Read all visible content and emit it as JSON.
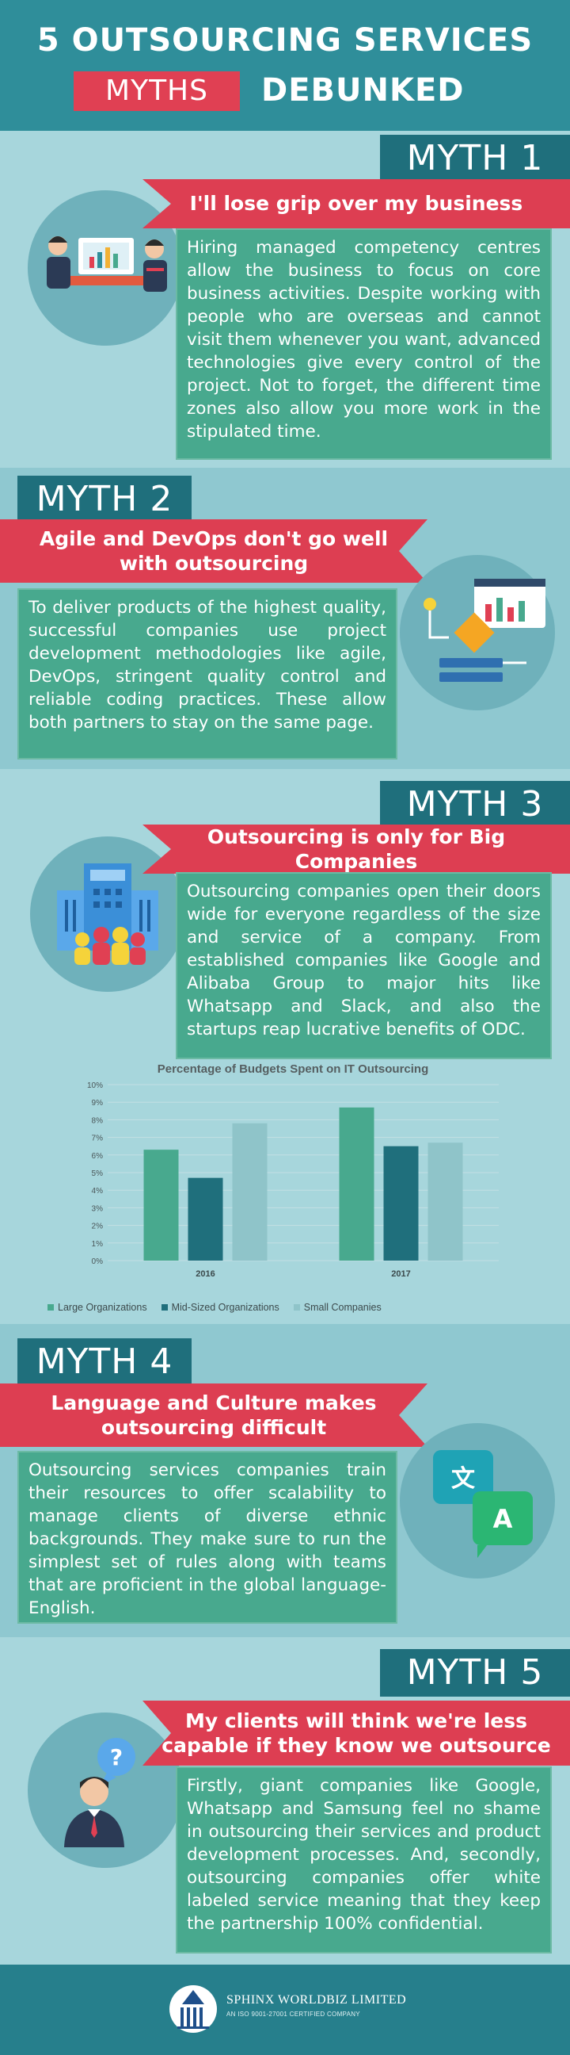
{
  "header": {
    "title_line1": "5 OUTSOURCING SERVICES",
    "myths_label": "MYTHS",
    "debunked_label": "DEBUNKED"
  },
  "myths": [
    {
      "tag": "MYTH 1",
      "headline": "I'll lose grip over my business",
      "body": "Hiring managed competency centres allow the business to focus on core business activities. Despite working with people who are overseas and cannot visit them whenever you want, advanced technologies give every control of the project. Not to forget, the different time zones also allow you more work in the stipulated time.",
      "icon": "business-meeting-icon"
    },
    {
      "tag": "MYTH 2",
      "headline": "Agile and DevOps don't go well with outsourcing",
      "body": "To deliver products of the highest quality, successful companies use project development methodologies like agile, DevOps, stringent quality control and reliable coding practices. These allow both partners to stay on the same page.",
      "icon": "workflow-dashboard-icon"
    },
    {
      "tag": "MYTH 3",
      "headline": "Outsourcing is only for Big Companies",
      "body": "Outsourcing companies open their doors wide for everyone regardless of the size and service of a company. From established companies like Google and Alibaba Group to major hits like Whatsapp and Slack, and also the startups reap lucrative benefits of ODC.",
      "icon": "office-building-icon"
    },
    {
      "tag": "MYTH 4",
      "headline": "Language and Culture makes outsourcing difficult",
      "body": "Outsourcing services companies train their resources to offer scalability to manage clients of diverse ethnic backgrounds. They make sure to run the simplest set of rules along with teams that are proficient in the global language- English.",
      "icon": "translate-icon"
    },
    {
      "tag": "MYTH 5",
      "headline": "My clients will think we're less capable if they know we outsource",
      "body": "Firstly, giant companies like Google, Whatsapp and Samsung feel no shame in outsourcing their services and product development processes. And, secondly, outsourcing companies offer white labeled service meaning that they keep the partnership 100% confidential.",
      "icon": "question-person-icon"
    }
  ],
  "chart_data": {
    "type": "bar",
    "title": "Percentage of Budgets Spent on IT Outsourcing",
    "categories": [
      "2016",
      "2017"
    ],
    "series": [
      {
        "name": "Large Organizations",
        "values": [
          6.3,
          8.7
        ],
        "color": "#48a98e"
      },
      {
        "name": "Mid-Sized Organizations",
        "values": [
          4.7,
          6.5
        ],
        "color": "#1f6f7c"
      },
      {
        "name": "Small Companies",
        "values": [
          7.8,
          6.7
        ],
        "color": "#8fc4c9"
      }
    ],
    "yticks": [
      "0%",
      "1%",
      "2%",
      "3%",
      "4%",
      "5%",
      "6%",
      "7%",
      "8%",
      "9%",
      "10%"
    ],
    "ylim": [
      0,
      10
    ],
    "grid": true,
    "legend_position": "bottom"
  },
  "footer": {
    "company": "SPHINX WORLDBIZ LIMITED",
    "tagline": "AN ISO 9001-27001 CERTIFIED COMPANY"
  },
  "colors": {
    "header_bg": "#2f8e9a",
    "accent_red": "#dd3e52",
    "text_box_green": "#48a98e",
    "tag_dark": "#1f6f7c"
  }
}
